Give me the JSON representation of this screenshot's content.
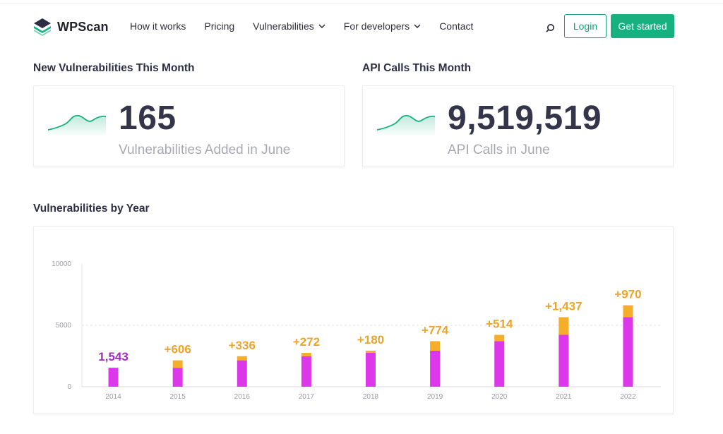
{
  "header": {
    "brand": "WPScan",
    "nav": [
      {
        "label": "How it works",
        "dropdown": false
      },
      {
        "label": "Pricing",
        "dropdown": false
      },
      {
        "label": "Vulnerabilities",
        "dropdown": true
      },
      {
        "label": "For developers",
        "dropdown": true
      },
      {
        "label": "Contact",
        "dropdown": false
      }
    ],
    "login_label": "Login",
    "start_label": "Get started"
  },
  "stats": {
    "vulns": {
      "title": "New Vulnerabilities This Month",
      "value": "165",
      "label": "Vulnerabilities Added in June"
    },
    "api": {
      "title": "API Calls This Month",
      "value": "9,519,519",
      "label": "API Calls in June"
    }
  },
  "chart_section": {
    "title": "Vulnerabilities by Year"
  },
  "colors": {
    "accent_green": "#17b07f",
    "bar_base": "#dc37e8",
    "bar_added": "#f4ae2a",
    "label_purple": "#a12bc2",
    "label_orange": "#eea42a"
  },
  "chart_data": {
    "type": "bar",
    "stacked": true,
    "categories": [
      "2014",
      "2015",
      "2016",
      "2017",
      "2018",
      "2019",
      "2020",
      "2021",
      "2022"
    ],
    "series": [
      {
        "values": [
          1543,
          1543,
          2149,
          2485,
          2757,
          2937,
          3711,
          4225,
          5662
        ]
      },
      {
        "values": [
          0,
          606,
          336,
          272,
          180,
          774,
          514,
          1437,
          970
        ]
      }
    ],
    "data_labels": [
      "1,543",
      "+606",
      "+336",
      "+272",
      "+180",
      "+774",
      "+514",
      "+1,437",
      "+970"
    ],
    "yticks": [
      "0",
      "5000",
      "10000"
    ],
    "ylim": [
      0,
      10000
    ],
    "grid": "dashed line at 5000"
  }
}
